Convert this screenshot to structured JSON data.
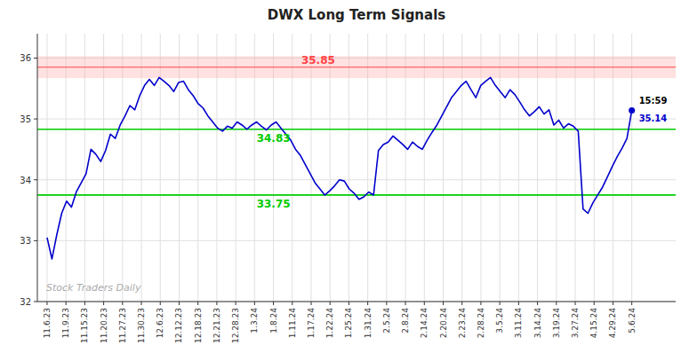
{
  "chart_data": {
    "type": "line",
    "title": "DWX Long Term Signals",
    "x": [
      0,
      1,
      2,
      3,
      4,
      5,
      6,
      7,
      8,
      9,
      10,
      11,
      12,
      13,
      14,
      15,
      16,
      17,
      18,
      19,
      20,
      21,
      22,
      23,
      24,
      25,
      26,
      27,
      28,
      29,
      30,
      31,
      32,
      33,
      34,
      35,
      36,
      37,
      38,
      39,
      40,
      41,
      42,
      43,
      44,
      45,
      46,
      47,
      48,
      49,
      50,
      51,
      52,
      53,
      54,
      55,
      56,
      57,
      58,
      59,
      60,
      61,
      62,
      63,
      64,
      65,
      66,
      67,
      68,
      69,
      70,
      71,
      72,
      73,
      74,
      75,
      76,
      77,
      78,
      79,
      80,
      81,
      82,
      83,
      84,
      85,
      86,
      87,
      88,
      89,
      90,
      91,
      92,
      93,
      94,
      95,
      96,
      97,
      98,
      99,
      100,
      101,
      102,
      103,
      104,
      105,
      106,
      107,
      108,
      109,
      110,
      111,
      112,
      113,
      114,
      115,
      116,
      117,
      118,
      119,
      120
    ],
    "values": [
      33.05,
      32.7,
      33.1,
      33.45,
      33.65,
      33.55,
      33.8,
      33.95,
      34.1,
      34.5,
      34.42,
      34.3,
      34.48,
      34.75,
      34.68,
      34.9,
      35.05,
      35.22,
      35.15,
      35.38,
      35.55,
      35.65,
      35.55,
      35.68,
      35.62,
      35.55,
      35.45,
      35.6,
      35.62,
      35.48,
      35.38,
      35.25,
      35.18,
      35.05,
      34.95,
      34.85,
      34.8,
      34.88,
      34.85,
      34.95,
      34.9,
      34.83,
      34.9,
      34.95,
      34.88,
      34.82,
      34.9,
      34.95,
      34.85,
      34.75,
      34.65,
      34.5,
      34.4,
      34.25,
      34.1,
      33.95,
      33.85,
      33.75,
      33.82,
      33.9,
      34.0,
      33.98,
      33.85,
      33.78,
      33.68,
      33.72,
      33.8,
      33.75,
      34.48,
      34.58,
      34.62,
      34.72,
      34.65,
      34.58,
      34.5,
      34.62,
      34.55,
      34.5,
      34.65,
      34.78,
      34.9,
      35.05,
      35.2,
      35.35,
      35.45,
      35.55,
      35.62,
      35.48,
      35.35,
      35.55,
      35.62,
      35.68,
      35.55,
      35.45,
      35.35,
      35.48,
      35.4,
      35.28,
      35.15,
      35.05,
      35.12,
      35.2,
      35.08,
      35.15,
      34.9,
      34.98,
      34.85,
      34.92,
      34.88,
      34.8,
      33.52,
      33.45,
      33.62,
      33.75,
      33.88,
      34.05,
      34.22,
      34.38,
      34.52,
      34.68,
      35.14
    ],
    "color": "#0000cc",
    "xlim": [
      -2,
      129
    ],
    "xticks": [
      {
        "value": 0,
        "label": "11.6.23"
      },
      {
        "value": 3.870967741935484,
        "label": "11.9.23"
      },
      {
        "value": 7.741935483870968,
        "label": "11.15.23"
      },
      {
        "value": 11.612903225806452,
        "label": "11.20.23"
      },
      {
        "value": 15.483870967741936,
        "label": "11.27.23"
      },
      {
        "value": 19.35483870967742,
        "label": "11.30.23"
      },
      {
        "value": 23.225806451612904,
        "label": "12.6.23"
      },
      {
        "value": 27.096774193548388,
        "label": "12.12.23"
      },
      {
        "value": 30.967741935483872,
        "label": "12.18.23"
      },
      {
        "value": 34.83870967741935,
        "label": "12.21.23"
      },
      {
        "value": 38.70967741935484,
        "label": "12.28.23"
      },
      {
        "value": 42.58064516129032,
        "label": "1.3.24"
      },
      {
        "value": 46.45161290322581,
        "label": "1.8.24"
      },
      {
        "value": 50.32258064516129,
        "label": "1.11.24"
      },
      {
        "value": 54.193548387096776,
        "label": "1.17.24"
      },
      {
        "value": 58.064516129032256,
        "label": "1.22.24"
      },
      {
        "value": 61.935483870967744,
        "label": "1.25.24"
      },
      {
        "value": 65.80645161290323,
        "label": "1.31.24"
      },
      {
        "value": 69.6774193548387,
        "label": "2.5.24"
      },
      {
        "value": 73.54838709677419,
        "label": "2.8.24"
      },
      {
        "value": 77.41935483870968,
        "label": "2.14.24"
      },
      {
        "value": 81.29032258064517,
        "label": "2.20.24"
      },
      {
        "value": 85.16129032258064,
        "label": "2.23.24"
      },
      {
        "value": 89.03225806451613,
        "label": "2.28.24"
      },
      {
        "value": 92.90322580645162,
        "label": "3.5.24"
      },
      {
        "value": 96.7741935483871,
        "label": "3.11.24"
      },
      {
        "value": 100.64516129032258,
        "label": "3.14.24"
      },
      {
        "value": 104.51612903225806,
        "label": "3.19.24"
      },
      {
        "value": 108.38709677419355,
        "label": "3.27.24"
      },
      {
        "value": 112.25806451612904,
        "label": "4.15.24"
      },
      {
        "value": 116.12903225806451,
        "label": "4.29.24"
      },
      {
        "value": 120,
        "label": "5.6.24"
      }
    ],
    "ylim": [
      32,
      36.4
    ],
    "yticks": [
      32,
      33,
      34,
      35,
      36
    ],
    "grid": true,
    "reference_lines": [
      {
        "value": 35.85,
        "label": "35.85",
        "color": "#ff4444",
        "band": [
          35.67,
          36.03
        ],
        "band_color": "#ffaaaa"
      },
      {
        "value": 34.83,
        "label": "34.83",
        "color": "#00cc00"
      },
      {
        "value": 33.75,
        "label": "33.75",
        "color": "#00cc00"
      }
    ],
    "last_price": {
      "time": "15:59",
      "value": 35.14,
      "label": "35.14"
    },
    "watermark": "Stock Traders Daily"
  }
}
